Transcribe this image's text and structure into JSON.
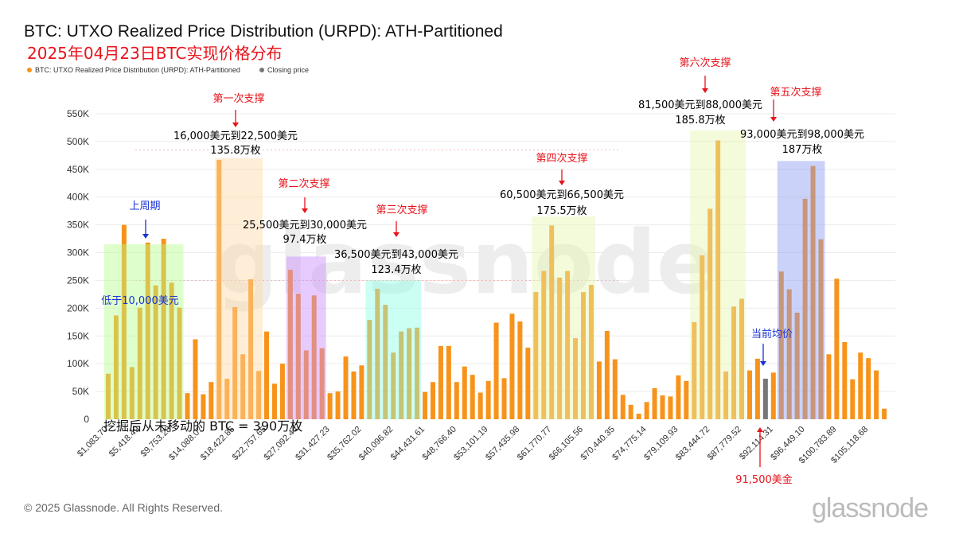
{
  "title": "BTC: UTXO Realized Price Distribution (URPD): ATH-Partitioned",
  "subtitle": "2025年04月23日BTC实现价格分布",
  "legend": [
    {
      "label": "BTC: UTXO Realized Price Distribution (URPD): ATH-Partitioned",
      "color": "#f7931a"
    },
    {
      "label": "Closing price",
      "color": "#777777"
    }
  ],
  "footer": "© 2025 Glassnode. All Rights Reserved.",
  "logo": "glassnode",
  "watermark": "glassnode",
  "chart_data": {
    "type": "bar",
    "title": "BTC: UTXO Realized Price Distribution (URPD): ATH-Partitioned",
    "xlabel": "",
    "ylabel": "",
    "ylim": [
      0,
      550000
    ],
    "yticks": [
      "0",
      "50K",
      "100K",
      "150K",
      "200K",
      "250K",
      "300K",
      "350K",
      "400K",
      "450K",
      "500K",
      "550K"
    ],
    "bin_width": 1083.7,
    "xtick_labels": [
      "$1,083.70",
      "$5,418.49",
      "$9,753.28",
      "$14,088.07",
      "$18,422.86",
      "$22,757.65",
      "$27,092.44",
      "$31,427.23",
      "$35,762.02",
      "$40,096.82",
      "$44,431.61",
      "$48,766.40",
      "$53,101.19",
      "$57,435.98",
      "$61,770.77",
      "$66,105.56",
      "$70,440.35",
      "$74,775.14",
      "$79,109.93",
      "$83,444.72",
      "$87,779.52",
      "$92,114.31",
      "$96,449.10",
      "$100,783.89",
      "$105,118.68"
    ],
    "xtick_every": 4,
    "closing_price_bar_index": 84,
    "series": [
      {
        "name": "BTC: UTXO Realized Price Distribution (URPD): ATH-Partitioned",
        "color": "#f7931a",
        "values": [
          82000,
          187000,
          350000,
          94000,
          201000,
          318000,
          241000,
          325000,
          246000,
          201000,
          47000,
          144000,
          45000,
          67000,
          467000,
          73000,
          202000,
          117000,
          252000,
          87000,
          158000,
          64000,
          100000,
          269000,
          226000,
          124000,
          223000,
          128000,
          47000,
          50000,
          113000,
          86000,
          97000,
          179000,
          235000,
          206000,
          120000,
          158000,
          164000,
          165000,
          49000,
          67000,
          132000,
          132000,
          67000,
          95000,
          80000,
          48000,
          69000,
          174000,
          74000,
          190000,
          176000,
          129000,
          229000,
          267000,
          349000,
          255000,
          267000,
          146000,
          229000,
          242000,
          104000,
          159000,
          108000,
          44000,
          26000,
          10000,
          31000,
          56000,
          43000,
          41000,
          79000,
          69000,
          175000,
          295000,
          379000,
          502000,
          86000,
          203000,
          217000,
          88000,
          109000,
          73000,
          84000,
          266000,
          234000,
          192000,
          397000,
          456000,
          324000,
          117000,
          253000,
          139000,
          72000,
          120000,
          110000,
          88000,
          19000
        ]
      }
    ],
    "reference_lines": [
      485000,
      250000
    ],
    "highlight_ranges": [
      {
        "from_bar": 1,
        "to_bar": 10,
        "top": 315000,
        "color": "#b6ff8c"
      },
      {
        "from_bar": 15,
        "to_bar": 20,
        "top": 470000,
        "color": "#ffd9a6"
      },
      {
        "from_bar": 24,
        "to_bar": 28,
        "top": 293000,
        "color": "#c98cff"
      },
      {
        "from_bar": 34,
        "to_bar": 40,
        "top": 250000,
        "color": "#8cffe6"
      },
      {
        "from_bar": 55,
        "to_bar": 62,
        "top": 365000,
        "color": "#e6f7b0"
      },
      {
        "from_bar": 75,
        "to_bar": 81,
        "top": 520000,
        "color": "#e6f7b0"
      },
      {
        "from_bar": 86,
        "to_bar": 91,
        "top": 465000,
        "color": "#8c9cf2"
      }
    ],
    "annotations": {
      "s1": {
        "label": "第一次支撑",
        "range": "16,000美元到22,500美元",
        "amount": "135.8万枚"
      },
      "s2": {
        "label": "第二次支撑",
        "range": "25,500美元到30,000美元",
        "amount": "97.4万枚"
      },
      "s3": {
        "label": "第三次支撑",
        "range": "36,500美元到43,000美元",
        "amount": "123.4万枚"
      },
      "s4": {
        "label": "第四次支撑",
        "range": "60,500美元到66,500美元",
        "amount": "175.5万枚"
      },
      "s5": {
        "label": "第五次支撑",
        "range": "93,000美元到98,000美元",
        "amount": "187万枚"
      },
      "s6": {
        "label": "第六次支撑",
        "range": "81,500美元到88,000美元",
        "amount": "185.8万枚"
      },
      "prev_cycle": "上周期",
      "below_10k": "低于10,000美元",
      "current_avg": "当前均价",
      "price": "91,500美金",
      "unmoved": "挖掘后从未移动的 BTC = 390万枚"
    }
  }
}
